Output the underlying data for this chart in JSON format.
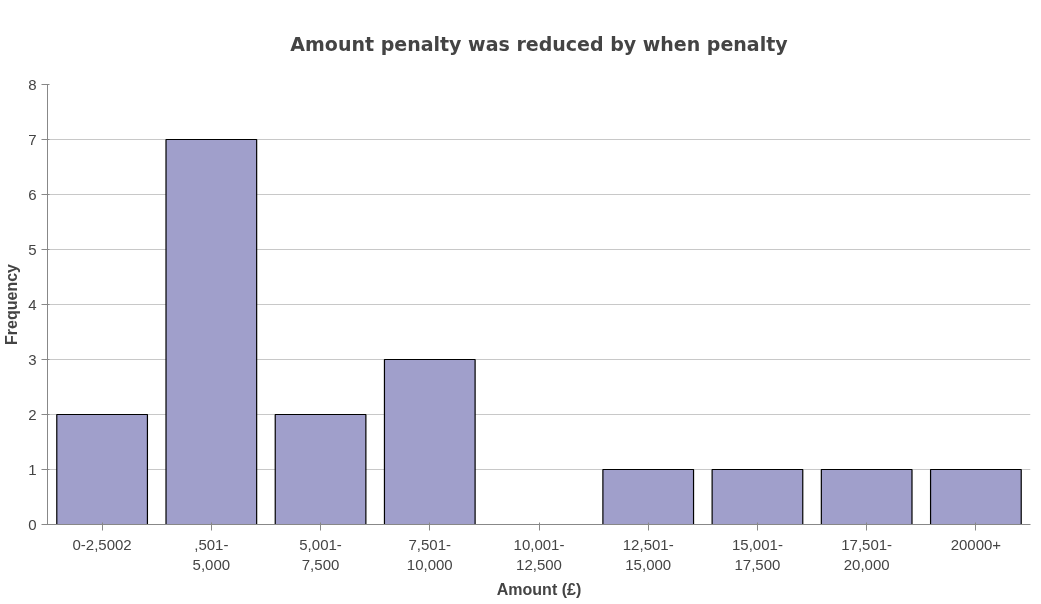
{
  "chart_data": {
    "type": "bar",
    "title": "Amount penalty was reduced by when penalty",
    "xlabel": "Amount (£)",
    "ylabel": "Frequency",
    "categories": [
      "0-2,5002",
      ",501-\n5,000",
      "5,001-\n7,500",
      "7,501-\n10,000",
      "10,001-\n12,500",
      "12,501-\n15,000",
      "15,001-\n17,500",
      "17,501-\n20,000",
      "20000+"
    ],
    "values": [
      2,
      7,
      2,
      3,
      0,
      1,
      1,
      1,
      1
    ],
    "color": "#a09fcb",
    "ylim": [
      0,
      8
    ],
    "yticks": [
      0,
      1,
      2,
      3,
      4,
      5,
      6,
      7,
      8
    ],
    "grid": "y"
  }
}
